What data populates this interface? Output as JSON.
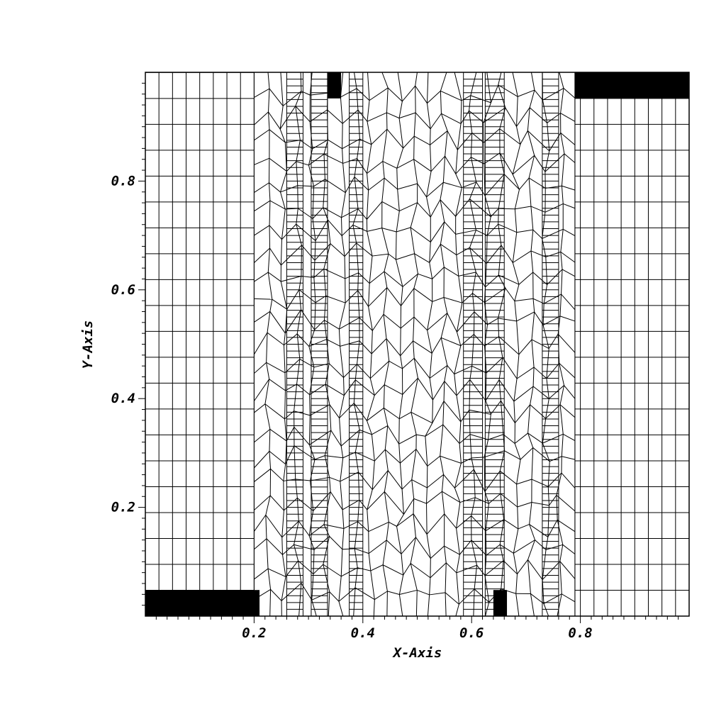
{
  "chart_data": {
    "type": "mesh",
    "title": "",
    "xlabel": "X-Axis",
    "ylabel": "Y-Axis",
    "xlim": [
      0,
      1
    ],
    "ylim": [
      0,
      1
    ],
    "x_ticks": [
      {
        "value": 0.2,
        "label": "0.2"
      },
      {
        "value": 0.4,
        "label": "0.4"
      },
      {
        "value": 0.6,
        "label": "0.6"
      },
      {
        "value": 0.8,
        "label": "0.8"
      }
    ],
    "y_ticks": [
      {
        "value": 0.2,
        "label": "0.2"
      },
      {
        "value": 0.4,
        "label": "0.4"
      },
      {
        "value": 0.6,
        "label": "0.6"
      },
      {
        "value": 0.8,
        "label": "0.8"
      }
    ],
    "left_structured_x": [
      0.0,
      0.025,
      0.05,
      0.075,
      0.1,
      0.125,
      0.15,
      0.175,
      0.2
    ],
    "left_structured_y_step": 0.0476,
    "right_structured_x": [
      0.79,
      0.8,
      0.825,
      0.85,
      0.875,
      0.9,
      0.925,
      0.95,
      0.975,
      1.0
    ],
    "right_structured_y_step": 0.0476,
    "unstructured_region_x": [
      0.2,
      0.79
    ],
    "refined_column_ranges_x": [
      [
        0.305,
        0.335
      ],
      [
        0.375,
        0.4
      ],
      [
        0.585,
        0.62
      ],
      [
        0.625,
        0.66
      ],
      [
        0.26,
        0.29
      ],
      [
        0.73,
        0.76
      ]
    ],
    "filled_blocks": [
      {
        "x": [
          0.0,
          0.21
        ],
        "y": [
          0.0,
          0.048
        ],
        "color": "#000000"
      },
      {
        "x": [
          0.335,
          0.36
        ],
        "y": [
          0.952,
          1.0
        ],
        "color": "#000000"
      },
      {
        "x": [
          0.64,
          0.665
        ],
        "y": [
          0.0,
          0.048
        ],
        "color": "#000000"
      },
      {
        "x": [
          0.79,
          1.0
        ],
        "y": [
          0.952,
          1.0
        ],
        "color": "#000000"
      }
    ],
    "line_color": "#000000",
    "background_color": "#ffffff"
  }
}
